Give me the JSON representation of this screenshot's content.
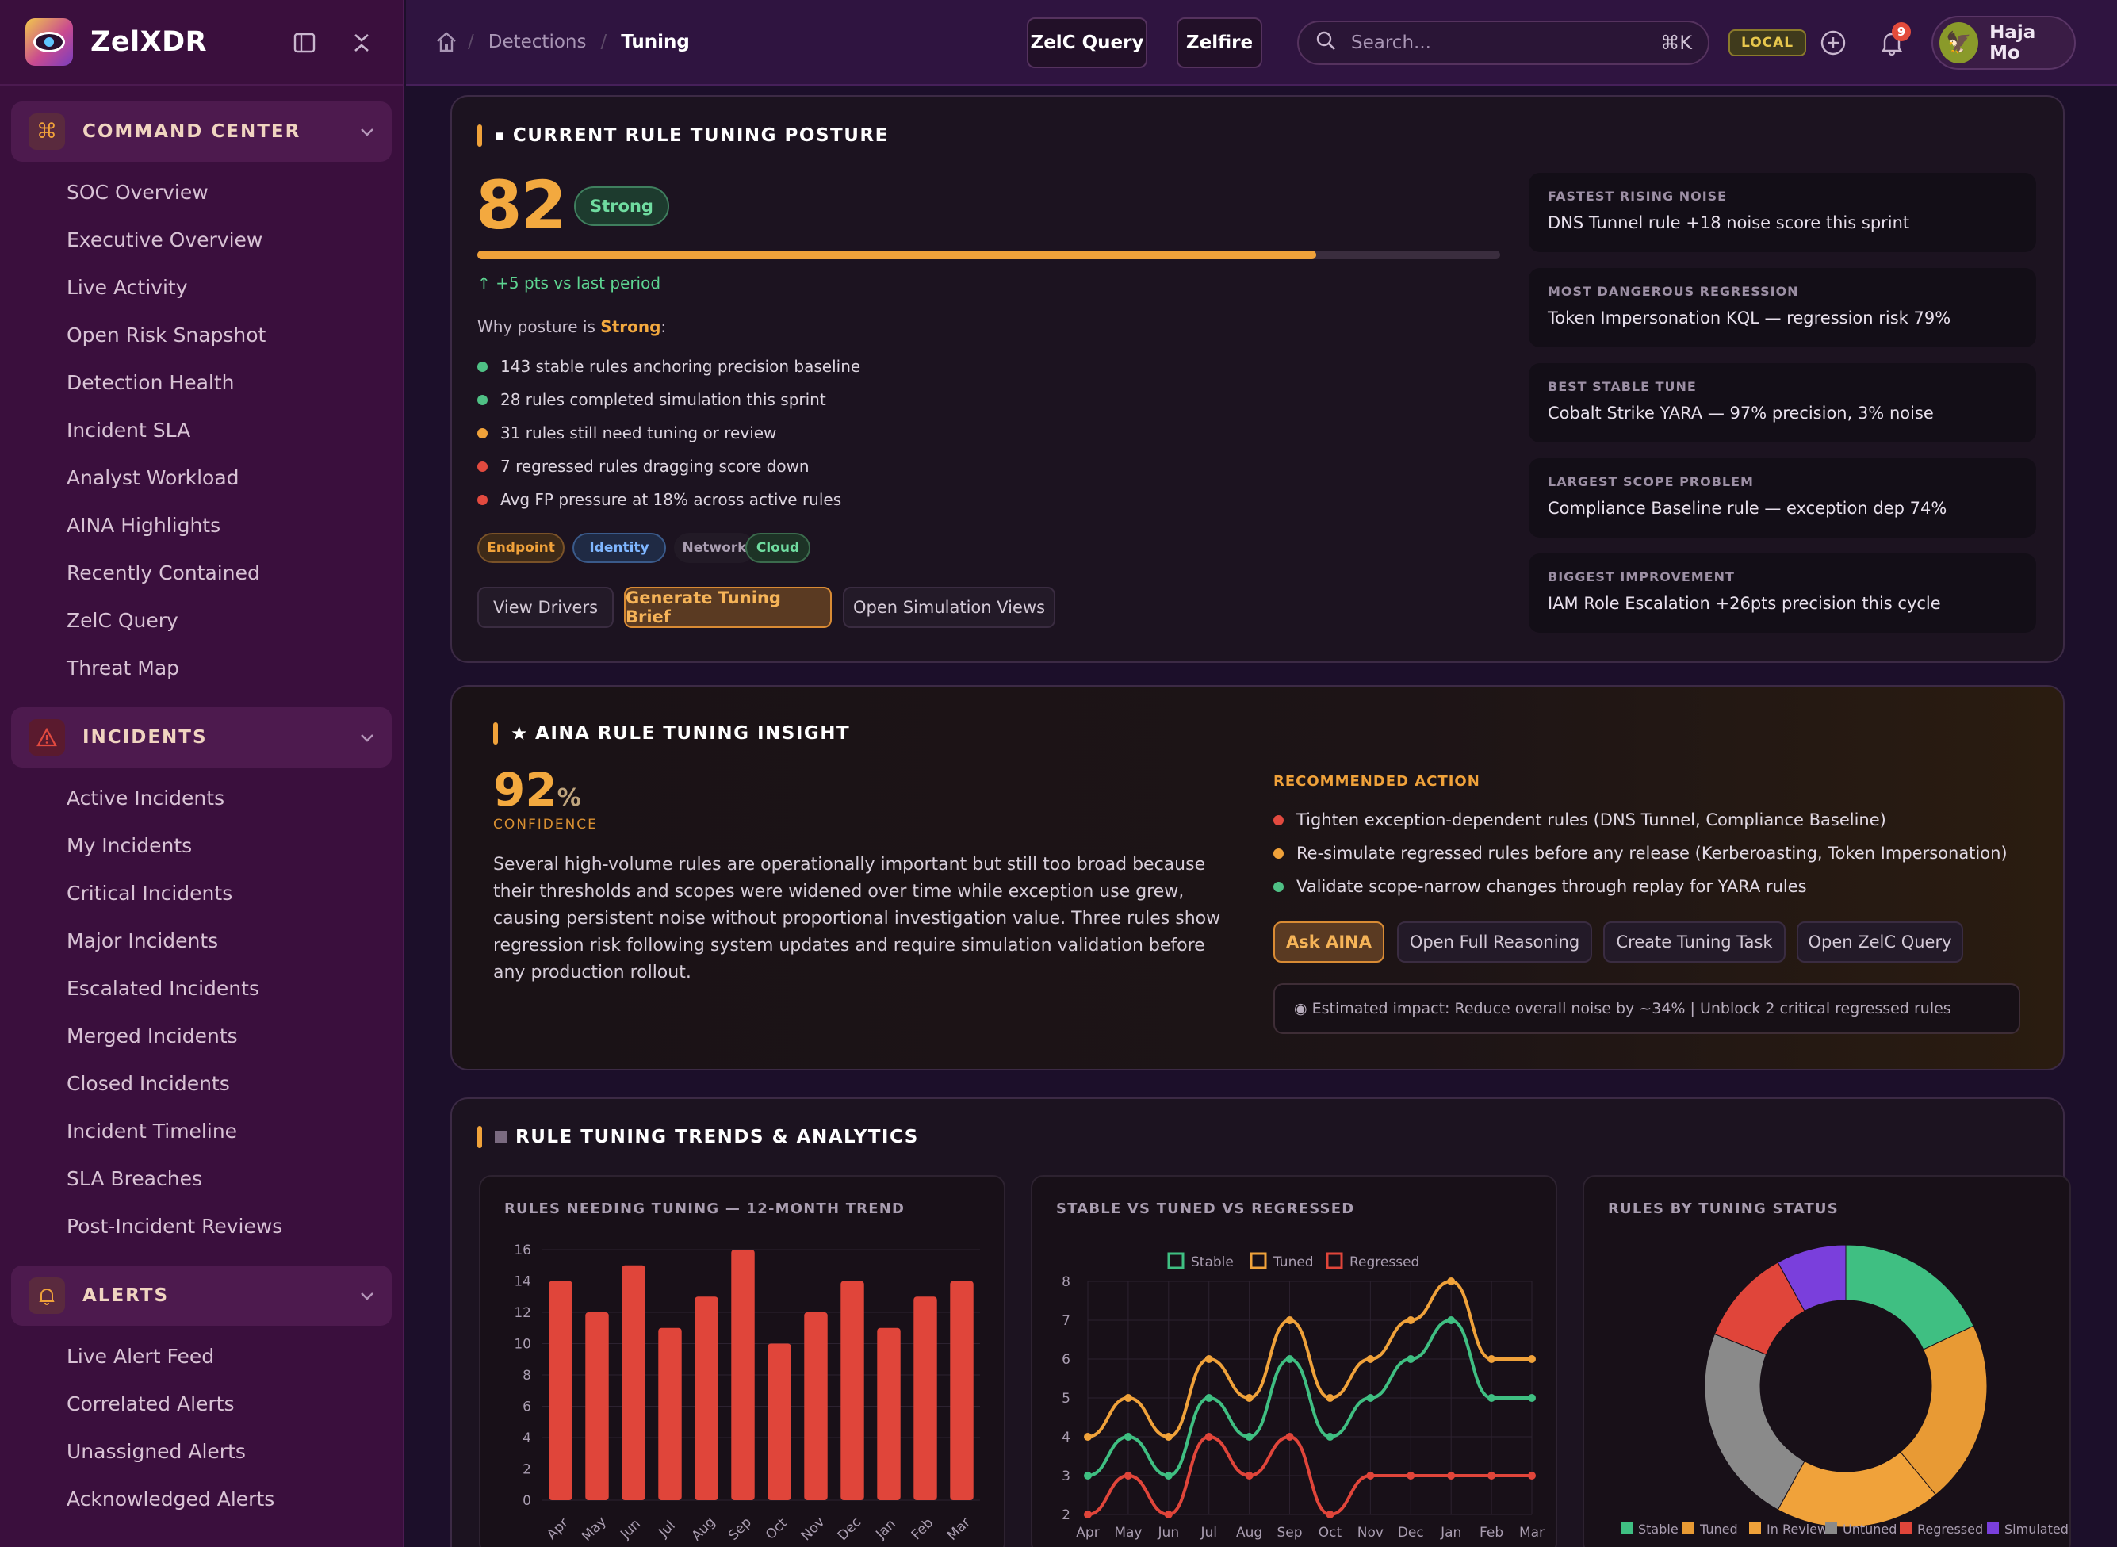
{
  "app": {
    "name": "ZelXDR"
  },
  "sidebar": {
    "sections": [
      {
        "label": "COMMAND CENTER",
        "icon": "command-icon",
        "items": [
          "SOC Overview",
          "Executive Overview",
          "Live Activity",
          "Open Risk Snapshot",
          "Detection Health",
          "Incident SLA",
          "Analyst Workload",
          "AINA Highlights",
          "Recently Contained",
          "ZelC Query",
          "Threat Map"
        ]
      },
      {
        "label": "INCIDENTS",
        "icon": "warning-icon",
        "items": [
          "Active Incidents",
          "My Incidents",
          "Critical Incidents",
          "Major Incidents",
          "Escalated Incidents",
          "Merged Incidents",
          "Closed Incidents",
          "Incident Timeline",
          "SLA Breaches",
          "Post-Incident Reviews"
        ]
      },
      {
        "label": "ALERTS",
        "icon": "bell-icon",
        "items": [
          "Live Alert Feed",
          "Correlated Alerts",
          "Unassigned Alerts",
          "Acknowledged Alerts"
        ]
      }
    ]
  },
  "topbar": {
    "breadcrumb": [
      "Detections",
      "Tuning"
    ],
    "zelc_query_label": "ZelC Query",
    "zelfire_label": "Zelfire",
    "search_placeholder": "Search...",
    "search_shortcut": "⌘K",
    "env_badge": "LOCAL",
    "notification_count": "9",
    "user_name": "Haja Mo"
  },
  "posture": {
    "title": "CURRENT RULE TUNING POSTURE",
    "score": "82",
    "status": "Strong",
    "progress_percent": 82,
    "delta": "↑ +5 pts vs last period",
    "why_prefix": "Why posture is ",
    "why_status": "Strong",
    "why_suffix": ":",
    "reasons": [
      {
        "text": "143 stable rules anchoring precision baseline",
        "color": "#4fc085"
      },
      {
        "text": "28 rules completed simulation this sprint",
        "color": "#4fc085"
      },
      {
        "text": "31 rules still need tuning or review",
        "color": "#f0a23a"
      },
      {
        "text": "7 regressed rules dragging score down",
        "color": "#e24a3f"
      },
      {
        "text": "Avg FP pressure at 18% across active rules",
        "color": "#e24a3f"
      }
    ],
    "tags": [
      "Endpoint",
      "Identity",
      "Network",
      "Cloud"
    ],
    "actions": {
      "drivers": "View Drivers",
      "brief": "Generate Tuning Brief",
      "simulation": "Open Simulation Views"
    },
    "facts": [
      {
        "label": "FASTEST RISING NOISE",
        "value": "DNS Tunnel rule +18 noise score this sprint"
      },
      {
        "label": "MOST DANGEROUS REGRESSION",
        "value": "Token Impersonation KQL — regression risk 79%"
      },
      {
        "label": "BEST STABLE TUNE",
        "value": "Cobalt Strike YARA — 97% precision, 3% noise"
      },
      {
        "label": "LARGEST SCOPE PROBLEM",
        "value": "Compliance Baseline rule — exception dep 74%"
      },
      {
        "label": "BIGGEST IMPROVEMENT",
        "value": "IAM Role Escalation +26pts precision this cycle"
      }
    ]
  },
  "insight": {
    "title": "AINA RULE TUNING INSIGHT",
    "confidence_value": "92",
    "confidence_unit": "%",
    "confidence_label": "CONFIDENCE",
    "summary": "Several high-volume rules are operationally important but still too broad because their thresholds and scopes were widened over time while exception use grew, causing persistent noise without proportional investigation value. Three rules show regression risk following system updates and require simulation validation before any production rollout.",
    "recommended_label": "RECOMMENDED ACTION",
    "recommendations": [
      {
        "text": "Tighten exception-dependent rules (DNS Tunnel, Compliance Baseline)",
        "color": "#e24a3f"
      },
      {
        "text": "Re-simulate regressed rules before any release (Kerberoasting, Token Impersonation)",
        "color": "#f0a23a"
      },
      {
        "text": "Validate scope-narrow changes through replay for YARA rules",
        "color": "#4fc085"
      }
    ],
    "actions": {
      "ask": "Ask AINA",
      "reasoning": "Open Full Reasoning",
      "task": "Create Tuning Task",
      "query": "Open ZelC Query"
    },
    "impact": "◉ Estimated impact: Reduce overall noise by ~34% | Unblock 2 critical regressed rules"
  },
  "trends": {
    "title": "RULE TUNING TRENDS & ANALYTICS"
  },
  "chart_data": [
    {
      "type": "bar",
      "title": "RULES NEEDING TUNING — 12-MONTH TREND",
      "categories": [
        "Apr",
        "May",
        "Jun",
        "Jul",
        "Aug",
        "Sep",
        "Oct",
        "Nov",
        "Dec",
        "Jan",
        "Feb",
        "Mar"
      ],
      "values": [
        14,
        12,
        15,
        11,
        13,
        16,
        10,
        12,
        14,
        11,
        13,
        14
      ],
      "ylim": [
        0,
        16
      ],
      "yticks": [
        0,
        2,
        4,
        6,
        8,
        10,
        12,
        14,
        16
      ],
      "color": "#e0453a"
    },
    {
      "type": "line",
      "title": "STABLE VS TUNED VS REGRESSED",
      "categories": [
        "Apr",
        "May",
        "Jun",
        "Jul",
        "Aug",
        "Sep",
        "Oct",
        "Nov",
        "Dec",
        "Jan",
        "Feb",
        "Mar"
      ],
      "ylim": [
        2,
        8
      ],
      "yticks": [
        2,
        3,
        4,
        5,
        6,
        7,
        8
      ],
      "series": [
        {
          "name": "Stable",
          "color": "#3fbf82",
          "values": [
            3,
            4,
            3,
            5,
            4,
            6,
            4,
            5,
            6,
            7,
            5,
            5
          ]
        },
        {
          "name": "Tuned",
          "color": "#f0a23a",
          "values": [
            4,
            5,
            4,
            6,
            5,
            7,
            5,
            6,
            7,
            8,
            6,
            6
          ]
        },
        {
          "name": "Regressed",
          "color": "#e0453a",
          "values": [
            2,
            3,
            2,
            4,
            3,
            4,
            2,
            3,
            3,
            3,
            3,
            3
          ]
        }
      ],
      "legend": "top"
    },
    {
      "type": "pie",
      "title": "RULES BY TUNING STATUS",
      "labels": [
        "Stable",
        "Tuned",
        "In Review",
        "Untuned",
        "Regressed",
        "Simulated"
      ],
      "values": [
        18,
        21,
        19,
        23,
        11,
        8
      ],
      "colors": [
        "#3fbf82",
        "#e89a34",
        "#f0a23a",
        "#8a8a8a",
        "#e0453a",
        "#7a3fdc"
      ],
      "legend": "bottom"
    }
  ]
}
